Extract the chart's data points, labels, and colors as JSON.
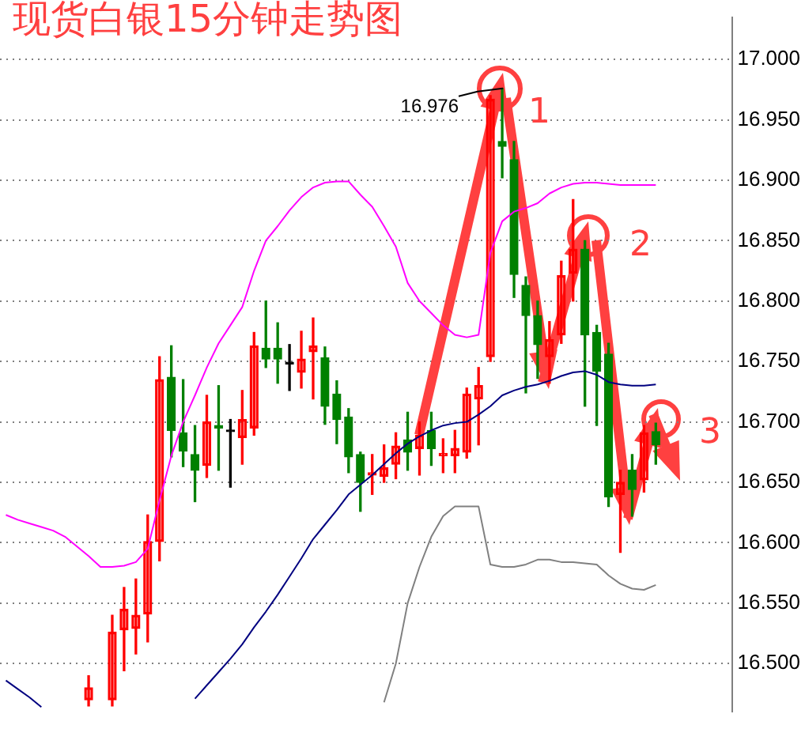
{
  "chart_data": {
    "type": "candlestick",
    "title": "现货白银15分钟走势图",
    "categories": [
      null,
      null,
      null,
      null,
      null,
      null,
      null,
      null,
      null,
      null,
      null,
      null,
      null,
      null,
      null,
      null,
      null,
      null,
      null,
      null,
      null,
      null,
      null,
      null,
      null,
      null,
      null,
      null,
      null,
      null,
      null,
      null,
      null,
      null,
      null,
      null,
      null,
      null,
      null,
      null,
      null,
      null,
      null,
      null,
      null,
      null,
      null,
      null,
      null,
      null,
      null,
      null,
      null,
      null,
      null,
      null,
      null,
      null,
      null,
      null,
      null,
      null
    ],
    "ohlc": [
      null,
      null,
      null,
      null,
      null,
      null,
      null,
      [
        16.47,
        16.49,
        16.465,
        16.48
      ],
      null,
      [
        16.47,
        16.54,
        16.465,
        16.526
      ],
      [
        16.528,
        16.563,
        16.494,
        16.545
      ],
      [
        16.529,
        16.57,
        16.508,
        16.54
      ],
      [
        16.541,
        16.623,
        16.518,
        16.601
      ],
      [
        16.601,
        16.754,
        16.585,
        16.735
      ],
      [
        16.737,
        16.763,
        16.671,
        16.693
      ],
      [
        16.691,
        16.735,
        16.663,
        16.676
      ],
      [
        16.673,
        16.697,
        16.634,
        16.66
      ],
      [
        16.664,
        16.722,
        16.654,
        16.7
      ],
      [
        16.697,
        16.73,
        16.66,
        16.695
      ],
      [
        16.692,
        16.702,
        16.646,
        16.692
      ],
      [
        16.687,
        16.726,
        16.665,
        16.702
      ],
      [
        16.695,
        16.774,
        16.689,
        16.763
      ],
      [
        16.761,
        16.8,
        16.745,
        16.752
      ],
      [
        16.761,
        16.782,
        16.732,
        16.752
      ],
      [
        16.748,
        16.764,
        16.726,
        16.748
      ],
      [
        16.741,
        16.775,
        16.728,
        16.752
      ],
      [
        16.758,
        16.786,
        16.719,
        16.763
      ],
      [
        16.753,
        16.762,
        16.698,
        16.713
      ],
      [
        16.723,
        16.734,
        16.682,
        16.702
      ],
      [
        16.704,
        16.711,
        16.658,
        16.671
      ],
      [
        16.673,
        16.675,
        16.626,
        16.65
      ],
      [
        16.656,
        16.673,
        16.64,
        16.658
      ],
      [
        16.655,
        16.681,
        16.65,
        16.662
      ],
      [
        16.665,
        16.691,
        16.653,
        16.68
      ],
      [
        16.685,
        16.708,
        16.66,
        16.675
      ],
      [
        16.678,
        16.7,
        16.656,
        16.689
      ],
      [
        16.693,
        16.708,
        16.664,
        16.678
      ],
      [
        16.672,
        16.686,
        16.658,
        16.674
      ],
      [
        16.672,
        16.693,
        16.658,
        16.678
      ],
      [
        16.675,
        16.728,
        16.67,
        16.723
      ],
      [
        16.719,
        16.745,
        16.681,
        16.73
      ],
      [
        16.754,
        16.97,
        16.75,
        16.967
      ],
      [
        16.932,
        16.976,
        16.902,
        16.928
      ],
      [
        16.917,
        16.932,
        16.803,
        16.822
      ],
      [
        16.813,
        16.82,
        16.724,
        16.788
      ],
      [
        16.788,
        16.8,
        16.736,
        16.764
      ],
      [
        16.754,
        16.783,
        16.732,
        16.768
      ],
      [
        16.772,
        16.833,
        16.765,
        16.821
      ],
      [
        16.823,
        16.884,
        16.8,
        16.843
      ],
      [
        16.843,
        16.85,
        16.713,
        16.772
      ],
      [
        16.774,
        16.78,
        16.697,
        16.742
      ],
      [
        16.756,
        16.765,
        16.63,
        16.638
      ],
      [
        16.64,
        16.66,
        16.592,
        16.65
      ],
      [
        16.66,
        16.673,
        16.622,
        16.644
      ],
      [
        16.652,
        16.697,
        16.642,
        16.691
      ],
      [
        16.692,
        16.699,
        16.665,
        16.681
      ],
      null,
      null,
      null,
      null,
      null,
      null
    ],
    "series": [
      {
        "type": "line",
        "color": "#ff00ff",
        "values": [
          16.623,
          16.619,
          16.616,
          16.613,
          16.61,
          16.605,
          16.597,
          16.589,
          16.58,
          16.58,
          16.581,
          16.584,
          16.595,
          16.635,
          16.672,
          16.7,
          16.722,
          16.745,
          16.765,
          16.78,
          16.795,
          16.825,
          16.85,
          16.862,
          16.875,
          16.886,
          16.894,
          16.898,
          16.899,
          16.899,
          16.888,
          16.878,
          16.862,
          16.845,
          16.815,
          16.8,
          16.79,
          16.78,
          16.772,
          16.77,
          16.772,
          16.84,
          16.866,
          16.874,
          16.877,
          16.881,
          16.889,
          16.894,
          16.897,
          16.898,
          16.898,
          16.897,
          16.896,
          16.896,
          16.896,
          16.896,
          null,
          null,
          null,
          null,
          null,
          null
        ]
      },
      {
        "type": "line",
        "color": "#000080",
        "values": [
          16.486,
          16.479,
          16.472,
          16.464,
          null,
          null,
          null,
          null,
          null,
          null,
          null,
          null,
          null,
          null,
          null,
          null,
          16.471,
          16.482,
          16.493,
          16.504,
          16.516,
          16.53,
          16.543,
          16.557,
          16.572,
          16.587,
          16.603,
          16.615,
          16.627,
          16.64,
          16.648,
          16.656,
          16.665,
          16.674,
          16.682,
          16.688,
          16.693,
          16.697,
          16.699,
          16.7,
          16.706,
          16.713,
          16.722,
          16.726,
          16.729,
          16.731,
          16.734,
          16.738,
          16.741,
          16.742,
          16.739,
          16.733,
          16.731,
          16.73,
          16.73,
          16.731,
          null,
          null,
          null,
          null,
          null,
          null
        ]
      },
      {
        "type": "line",
        "color": "#808080",
        "values": [
          null,
          null,
          null,
          null,
          null,
          null,
          null,
          null,
          null,
          null,
          null,
          null,
          null,
          null,
          null,
          null,
          null,
          null,
          null,
          null,
          null,
          null,
          null,
          null,
          null,
          null,
          null,
          null,
          null,
          null,
          null,
          null,
          16.468,
          16.5,
          16.55,
          16.58,
          16.605,
          16.622,
          16.63,
          16.63,
          16.63,
          16.582,
          16.58,
          16.58,
          16.582,
          16.586,
          16.586,
          16.584,
          16.584,
          16.583,
          16.582,
          16.573,
          16.566,
          16.562,
          16.561,
          16.565,
          null,
          null,
          null,
          null,
          null,
          null
        ]
      }
    ],
    "ylim": [
      16.46,
      17.035
    ],
    "yticks": [
      {
        "value": 16.5,
        "label": "16.500"
      },
      {
        "value": 16.55,
        "label": "16.550"
      },
      {
        "value": 16.6,
        "label": "16.600"
      },
      {
        "value": 16.65,
        "label": "16.650"
      },
      {
        "value": 16.7,
        "label": "16.700"
      },
      {
        "value": 16.75,
        "label": "16.750"
      },
      {
        "value": 16.8,
        "label": "16.800"
      },
      {
        "value": 16.85,
        "label": "16.850"
      },
      {
        "value": 16.9,
        "label": "16.900"
      },
      {
        "value": 16.95,
        "label": "16.950"
      },
      {
        "value": 17,
        "label": "17.000"
      }
    ],
    "grid": "y",
    "legend": false,
    "tick_labels": "y",
    "marker": "none",
    "annotations": [
      "16.976",
      "1",
      "2",
      "3"
    ]
  }
}
